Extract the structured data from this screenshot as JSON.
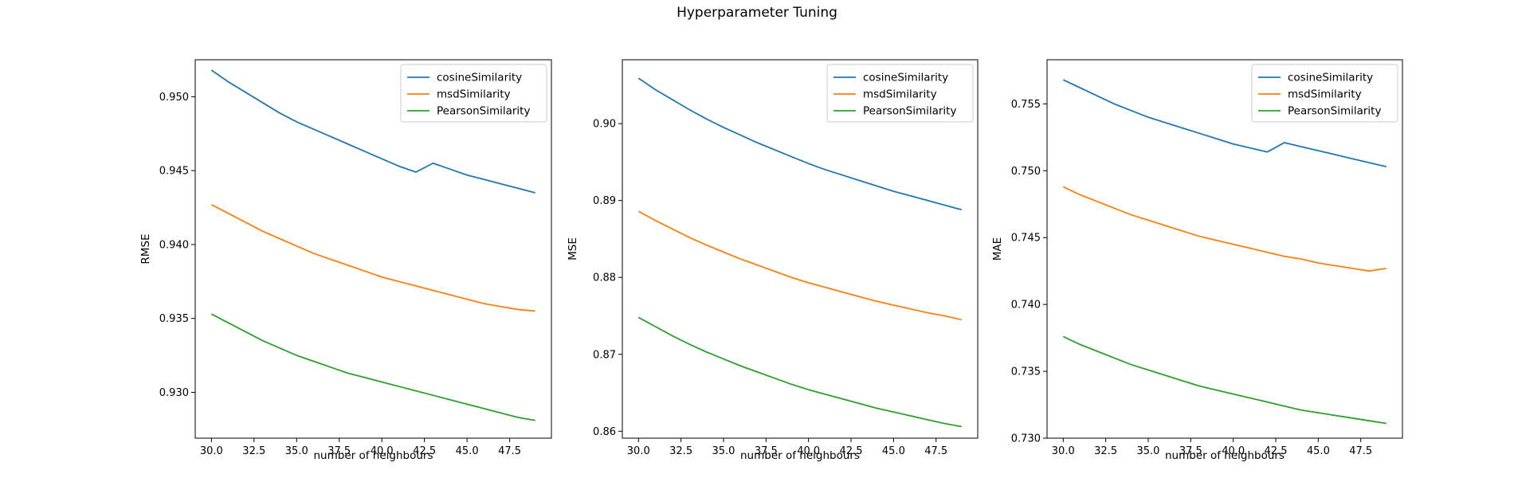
{
  "figure": {
    "title": "Hyperparameter Tuning"
  },
  "colors": {
    "cosineSimilarity": "#1f77b4",
    "msdSimilarity": "#ff7f0e",
    "PearsonSimilarity": "#2ca02c"
  },
  "chart_data": [
    {
      "type": "line",
      "xlabel": "number of neighbours",
      "ylabel": "RMSE",
      "xlim": [
        29.05,
        49.95
      ],
      "ylim": [
        0.9269,
        0.9525
      ],
      "xticks": [
        30.0,
        32.5,
        35.0,
        37.5,
        40.0,
        42.5,
        45.0,
        47.5
      ],
      "xtick_labels": [
        "30.0",
        "32.5",
        "35.0",
        "37.5",
        "40.0",
        "42.5",
        "45.0",
        "47.5"
      ],
      "yticks": [
        0.93,
        0.935,
        0.94,
        0.945,
        0.95
      ],
      "ytick_labels": [
        "0.930",
        "0.935",
        "0.940",
        "0.945",
        "0.950"
      ],
      "legend": "top-right",
      "x": [
        30,
        31,
        32,
        33,
        34,
        35,
        36,
        37,
        38,
        39,
        40,
        41,
        42,
        43,
        44,
        45,
        46,
        47,
        48,
        49
      ],
      "series": [
        {
          "name": "cosineSimilarity",
          "values": [
            0.9518,
            0.951,
            0.9503,
            0.9496,
            0.9489,
            0.9483,
            0.9478,
            0.9473,
            0.9468,
            0.9463,
            0.9458,
            0.9453,
            0.9449,
            0.9455,
            0.9451,
            0.9447,
            0.9444,
            0.9441,
            0.9438,
            0.9435
          ]
        },
        {
          "name": "msdSimilarity",
          "values": [
            0.9427,
            0.9421,
            0.9415,
            0.9409,
            0.9404,
            0.9399,
            0.9394,
            0.939,
            0.9386,
            0.9382,
            0.9378,
            0.9375,
            0.9372,
            0.9369,
            0.9366,
            0.9363,
            0.936,
            0.9358,
            0.9356,
            0.9355
          ]
        },
        {
          "name": "PearsonSimilarity",
          "values": [
            0.9353,
            0.9347,
            0.9341,
            0.9335,
            0.933,
            0.9325,
            0.9321,
            0.9317,
            0.9313,
            0.931,
            0.9307,
            0.9304,
            0.9301,
            0.9298,
            0.9295,
            0.9292,
            0.9289,
            0.9286,
            0.9283,
            0.9281
          ]
        }
      ]
    },
    {
      "type": "line",
      "xlabel": "number of neighbours",
      "ylabel": "MSE",
      "xlim": [
        29.05,
        49.95
      ],
      "ylim": [
        0.8591,
        0.9083
      ],
      "xticks": [
        30.0,
        32.5,
        35.0,
        37.5,
        40.0,
        42.5,
        45.0,
        47.5
      ],
      "xtick_labels": [
        "30.0",
        "32.5",
        "35.0",
        "37.5",
        "40.0",
        "42.5",
        "45.0",
        "47.5"
      ],
      "yticks": [
        0.86,
        0.87,
        0.88,
        0.89,
        0.9
      ],
      "ytick_labels": [
        "0.86",
        "0.87",
        "0.88",
        "0.89",
        "0.90"
      ],
      "legend": "top-right",
      "x": [
        30,
        31,
        32,
        33,
        34,
        35,
        36,
        37,
        38,
        39,
        40,
        41,
        42,
        43,
        44,
        45,
        46,
        47,
        48,
        49
      ],
      "series": [
        {
          "name": "cosineSimilarity",
          "values": [
            0.9059,
            0.9044,
            0.9031,
            0.9018,
            0.9006,
            0.8995,
            0.8985,
            0.8975,
            0.8966,
            0.8957,
            0.8948,
            0.894,
            0.8933,
            0.8926,
            0.8919,
            0.8912,
            0.8906,
            0.89,
            0.8894,
            0.8888
          ]
        },
        {
          "name": "msdSimilarity",
          "values": [
            0.8886,
            0.8874,
            0.8863,
            0.8852,
            0.8842,
            0.8833,
            0.8824,
            0.8816,
            0.8808,
            0.88,
            0.8793,
            0.8787,
            0.8781,
            0.8775,
            0.8769,
            0.8764,
            0.8759,
            0.8754,
            0.875,
            0.8745
          ]
        },
        {
          "name": "PearsonSimilarity",
          "values": [
            0.8748,
            0.8736,
            0.8724,
            0.8713,
            0.8703,
            0.8694,
            0.8685,
            0.8677,
            0.8669,
            0.8661,
            0.8654,
            0.8648,
            0.8642,
            0.8636,
            0.863,
            0.8625,
            0.862,
            0.8615,
            0.861,
            0.8606
          ]
        }
      ]
    },
    {
      "type": "line",
      "xlabel": "number of neighbours",
      "ylabel": "MAE",
      "xlim": [
        29.05,
        49.95
      ],
      "ylim": [
        0.73,
        0.7583
      ],
      "xticks": [
        30.0,
        32.5,
        35.0,
        37.5,
        40.0,
        42.5,
        45.0,
        47.5
      ],
      "xtick_labels": [
        "30.0",
        "32.5",
        "35.0",
        "37.5",
        "40.0",
        "42.5",
        "45.0",
        "47.5"
      ],
      "yticks": [
        0.73,
        0.735,
        0.74,
        0.745,
        0.75,
        0.755
      ],
      "ytick_labels": [
        "0.730",
        "0.735",
        "0.740",
        "0.745",
        "0.750",
        "0.755"
      ],
      "legend": "top-right",
      "x": [
        30,
        31,
        32,
        33,
        34,
        35,
        36,
        37,
        38,
        39,
        40,
        41,
        42,
        43,
        44,
        45,
        46,
        47,
        48,
        49
      ],
      "series": [
        {
          "name": "cosineSimilarity",
          "values": [
            0.7568,
            0.7562,
            0.7556,
            0.755,
            0.7545,
            0.754,
            0.7536,
            0.7532,
            0.7528,
            0.7524,
            0.752,
            0.7517,
            0.7514,
            0.7521,
            0.7518,
            0.7515,
            0.7512,
            0.7509,
            0.7506,
            0.7503
          ]
        },
        {
          "name": "msdSimilarity",
          "values": [
            0.7488,
            0.7482,
            0.7477,
            0.7472,
            0.7467,
            0.7463,
            0.7459,
            0.7455,
            0.7451,
            0.7448,
            0.7445,
            0.7442,
            0.7439,
            0.7436,
            0.7434,
            0.7431,
            0.7429,
            0.7427,
            0.7425,
            0.7427
          ]
        },
        {
          "name": "PearsonSimilarity",
          "values": [
            0.7376,
            0.737,
            0.7365,
            0.736,
            0.7355,
            0.7351,
            0.7347,
            0.7343,
            0.7339,
            0.7336,
            0.7333,
            0.733,
            0.7327,
            0.7324,
            0.7321,
            0.7319,
            0.7317,
            0.7315,
            0.7313,
            0.7311
          ]
        }
      ]
    }
  ]
}
